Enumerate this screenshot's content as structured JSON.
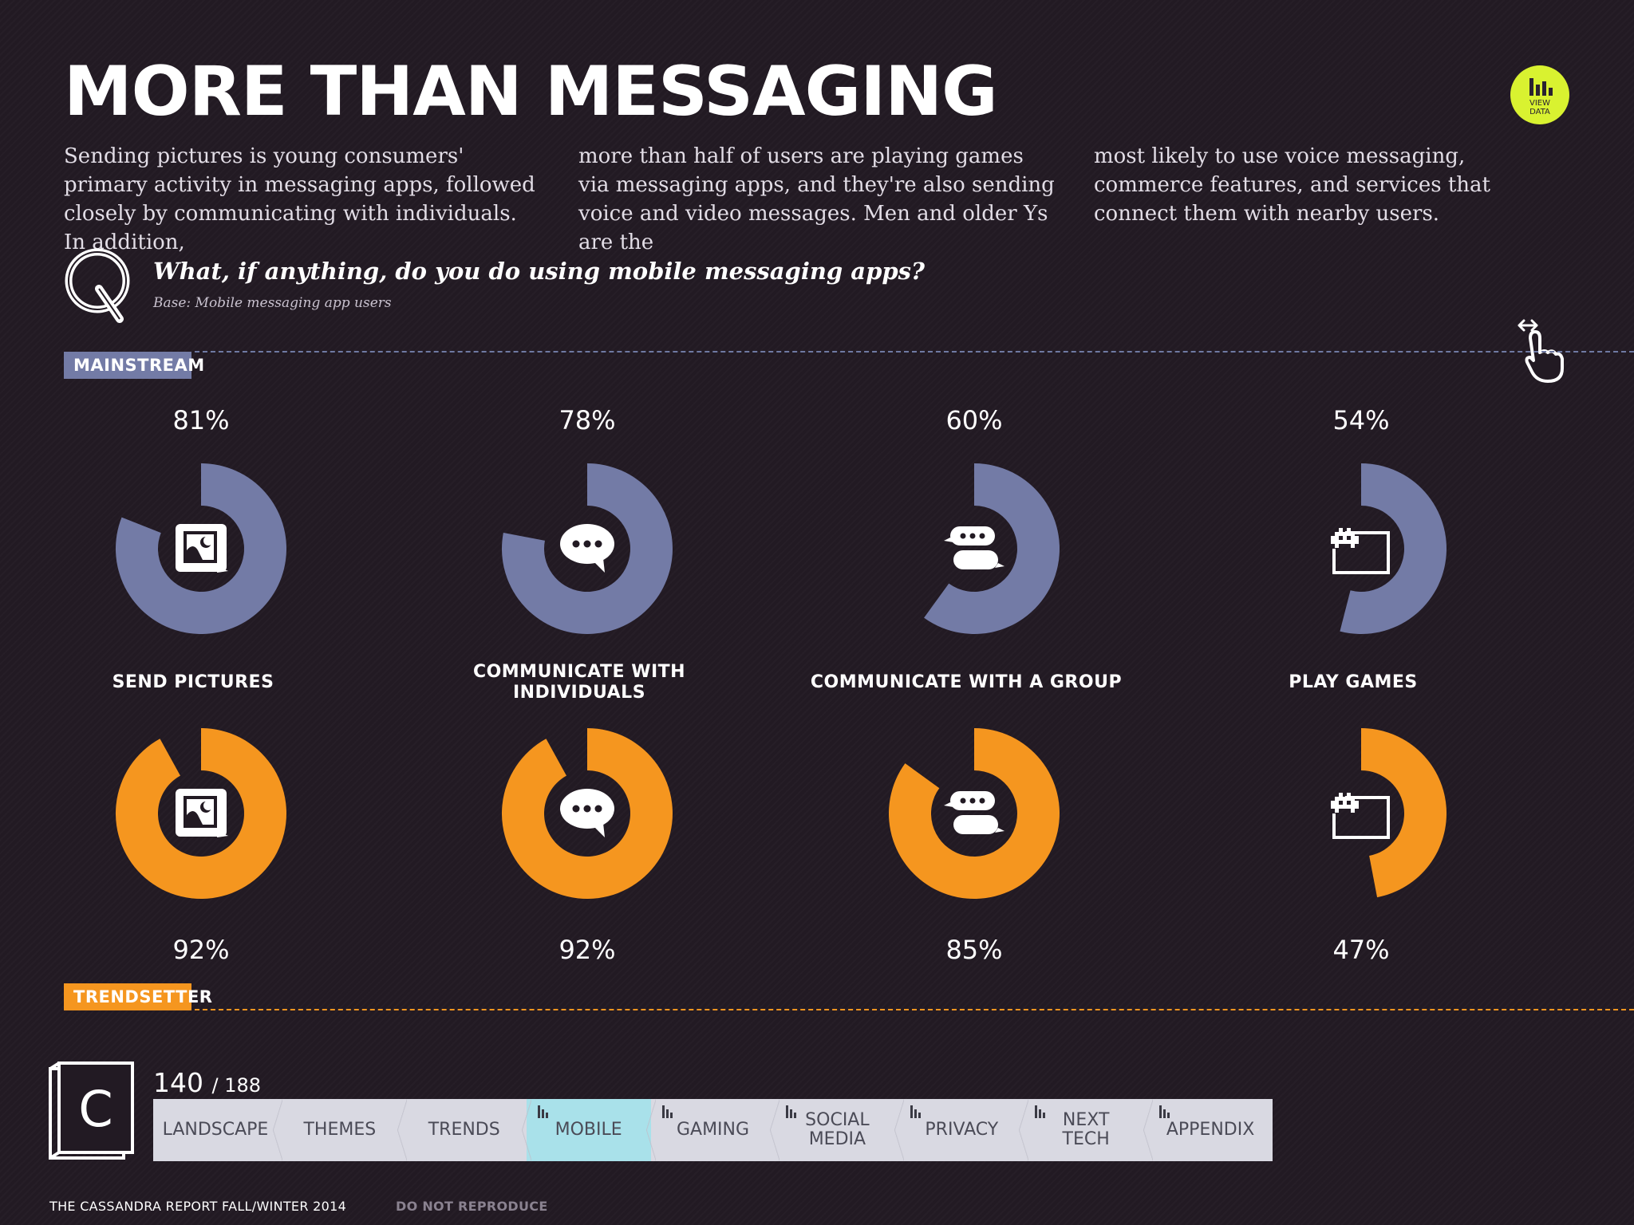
{
  "title": "MORE THAN MESSAGING",
  "view_data": {
    "label": "VIEW\nDATA",
    "icon": "bar-chart-icon"
  },
  "intro": {
    "col1": "Sending pictures is young consumers' primary activity in messaging apps, followed closely by communicating with individuals. In addition,",
    "col2": "more than half of users are playing games via messaging apps, and they're also sending voice and video messages. Men and older Ys are the",
    "col3": "most likely to use voice messaging, commerce features, and services that connect them with nearby users."
  },
  "question": {
    "text": "What, if anything, do you do using mobile messaging apps?",
    "base": "Base: Mobile messaging app users",
    "icon": "q-icon"
  },
  "segments": {
    "mainstream": "MAINSTREAM",
    "trendsetter": "TRENDSETTER"
  },
  "colors": {
    "mainstream": "#737ba6",
    "trendsetter": "#f5961f",
    "background": "#221a23",
    "accent": "#d9f230"
  },
  "chart_data": {
    "type": "donut",
    "categories": [
      "SEND PICTURES",
      "COMMUNICATE WITH\nINDIVIDUALS",
      "COMMUNICATE WITH A GROUP",
      "PLAY GAMES"
    ],
    "icons": [
      "picture-icon",
      "speech-bubble-icon",
      "group-chat-icon",
      "game-icon"
    ],
    "series": [
      {
        "name": "MAINSTREAM",
        "values": [
          81,
          78,
          60,
          54
        ],
        "labels": [
          "81%",
          "78%",
          "60%",
          "54%"
        ],
        "color": "#737ba6"
      },
      {
        "name": "TRENDSETTER",
        "values": [
          92,
          92,
          85,
          47
        ],
        "labels": [
          "92%",
          "92%",
          "85%",
          "47%"
        ],
        "color": "#f5961f"
      }
    ]
  },
  "footer": {
    "page_current": "140",
    "page_total": "/ 188",
    "nav": [
      {
        "label": "LANDSCAPE",
        "icon": false,
        "active": false
      },
      {
        "label": "THEMES",
        "icon": false,
        "active": false
      },
      {
        "label": "TRENDS",
        "icon": false,
        "active": false
      },
      {
        "label": "MOBILE",
        "icon": true,
        "active": true
      },
      {
        "label": "GAMING",
        "icon": true,
        "active": false
      },
      {
        "label": "SOCIAL\nMEDIA",
        "icon": true,
        "active": false
      },
      {
        "label": "PRIVACY",
        "icon": true,
        "active": false
      },
      {
        "label": "NEXT\nTECH",
        "icon": true,
        "active": false
      },
      {
        "label": "APPENDIX",
        "icon": true,
        "active": false
      }
    ],
    "report": "THE CASSANDRA REPORT FALL/WINTER 2014",
    "notice": "DO NOT REPRODUCE",
    "logo_letter": "C"
  }
}
